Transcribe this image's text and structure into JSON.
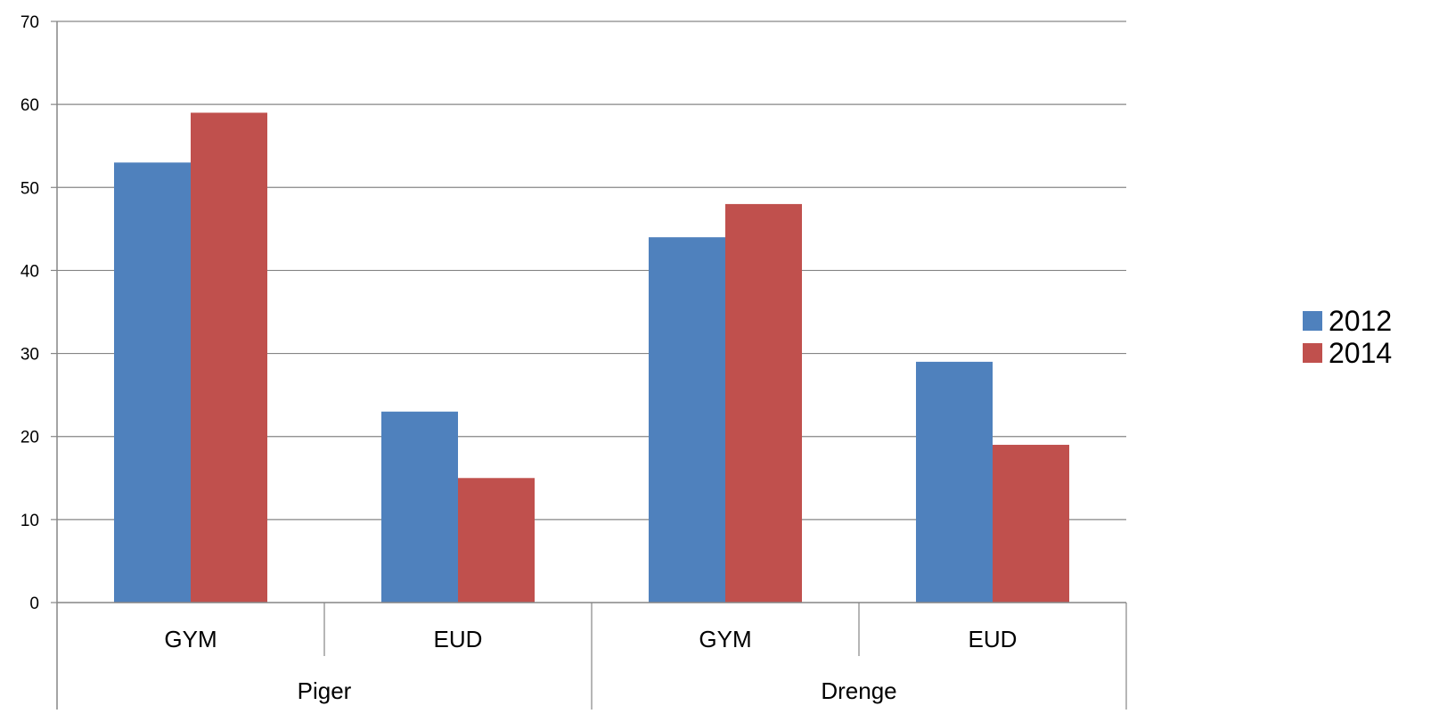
{
  "chart_data": {
    "type": "bar",
    "title": "",
    "xlabel": "",
    "ylabel": "",
    "ylim": [
      0,
      70
    ],
    "yticks": [
      0,
      10,
      20,
      30,
      40,
      50,
      60,
      70
    ],
    "grid": true,
    "legend_position": "right",
    "groups": [
      {
        "label": "Piger",
        "categories": [
          "GYM",
          "EUD"
        ]
      },
      {
        "label": "Drenge",
        "categories": [
          "GYM",
          "EUD"
        ]
      }
    ],
    "categories": [
      "GYM",
      "EUD",
      "GYM",
      "EUD"
    ],
    "series": [
      {
        "name": "2012",
        "color": "#4F81BD",
        "values": [
          53,
          23,
          44,
          29
        ]
      },
      {
        "name": "2014",
        "color": "#C0504D",
        "values": [
          59,
          15,
          48,
          19
        ]
      }
    ]
  }
}
